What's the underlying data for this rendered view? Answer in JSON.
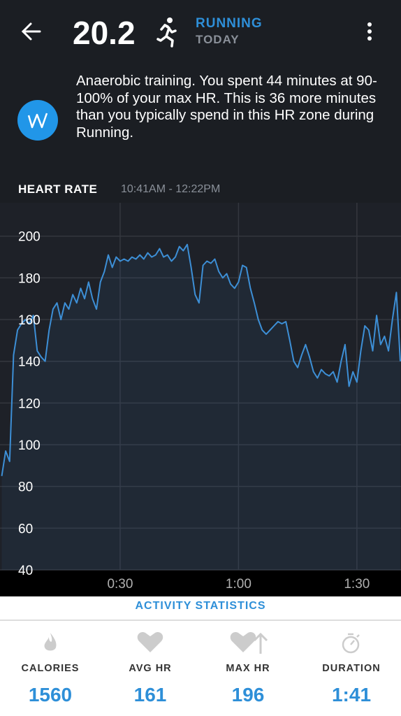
{
  "header": {
    "distance": "20.2",
    "activity": "RUNNING",
    "day": "TODAY"
  },
  "insight": {
    "text": "Anaerobic training. You spent 44 minutes at 90-100% of your max HR. This is 36 more minutes than you typically spend in this HR zone during Running."
  },
  "chart_data": {
    "type": "line",
    "title": "HEART RATE",
    "subtitle": "10:41AM - 12:22PM",
    "x": [
      0,
      1,
      2,
      3,
      4,
      5,
      6,
      7,
      8,
      9,
      10,
      11,
      12,
      13,
      14,
      15,
      16,
      17,
      18,
      19,
      20,
      21,
      22,
      23,
      24,
      25,
      26,
      27,
      28,
      29,
      30,
      31,
      32,
      33,
      34,
      35,
      36,
      37,
      38,
      39,
      40,
      41,
      42,
      43,
      44,
      45,
      46,
      47,
      48,
      49,
      50,
      51,
      52,
      53,
      54,
      55,
      56,
      57,
      58,
      59,
      60,
      61,
      62,
      63,
      64,
      65,
      66,
      67,
      68,
      69,
      70,
      71,
      72,
      73,
      74,
      75,
      76,
      77,
      78,
      79,
      80,
      81,
      82,
      83,
      84,
      85,
      86,
      87,
      88,
      89,
      90,
      91,
      92,
      93,
      94,
      95,
      96,
      97,
      98,
      99,
      100,
      101
    ],
    "series": [
      {
        "name": "HEART RATE",
        "color": "#3d8fd6",
        "values": [
          85,
          97,
          92,
          143,
          155,
          158,
          160,
          158,
          162,
          145,
          142,
          140,
          155,
          165,
          168,
          160,
          168,
          165,
          172,
          168,
          175,
          170,
          178,
          170,
          165,
          178,
          183,
          191,
          185,
          190,
          188,
          189,
          188,
          190,
          189,
          191,
          189,
          192,
          190,
          191,
          194,
          190,
          191,
          188,
          190,
          195,
          193,
          196,
          185,
          172,
          168,
          186,
          188,
          187,
          189,
          183,
          180,
          182,
          177,
          175,
          178,
          186,
          185,
          175,
          168,
          160,
          155,
          153,
          155,
          157,
          159,
          158,
          159,
          150,
          140,
          137,
          143,
          148,
          142,
          135,
          132,
          136,
          134,
          133,
          135,
          130,
          140,
          148,
          128,
          135,
          130,
          145,
          157,
          155,
          145,
          162,
          148,
          152,
          145,
          160,
          173,
          140
        ]
      }
    ],
    "xlim": [
      0,
      101
    ],
    "xticks": [
      {
        "value": 30,
        "label": "0:30"
      },
      {
        "value": 60,
        "label": "1:00"
      },
      {
        "value": 90,
        "label": "1:30"
      }
    ],
    "ylim": [
      40,
      216
    ],
    "yticks": [
      40,
      60,
      80,
      100,
      120,
      140,
      160,
      180,
      200
    ],
    "grid": true
  },
  "statistics": {
    "title": "ACTIVITY STATISTICS",
    "items": [
      {
        "label": "CALORIES",
        "value": 1560
      },
      {
        "label": "AVG HR",
        "value": 161
      },
      {
        "label": "MAX HR",
        "value": 196
      },
      {
        "label": "DURATION",
        "value": "1:41"
      }
    ]
  }
}
